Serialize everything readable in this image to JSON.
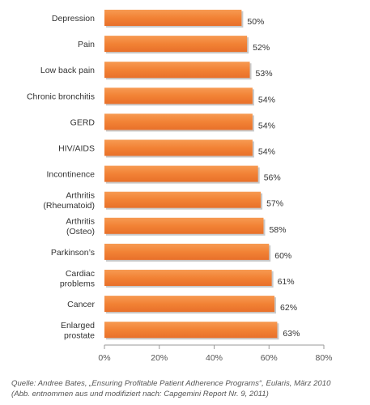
{
  "chart_data": {
    "type": "bar",
    "orientation": "horizontal",
    "categories": [
      "Depression",
      "Pain",
      "Low back pain",
      "Chronic bronchitis",
      "GERD",
      "HIV/AIDS",
      "Incontinence",
      "Arthritis\n(Rheumatoid)",
      "Arthritis\n(Osteo)",
      "Parkinson’s",
      "Cardiac\nproblems",
      "Cancer",
      "Enlarged\nprostate"
    ],
    "values": [
      50,
      52,
      53,
      54,
      54,
      54,
      56,
      57,
      58,
      60,
      61,
      62,
      63
    ],
    "value_labels": [
      "50%",
      "52%",
      "53%",
      "54%",
      "54%",
      "54%",
      "56%",
      "57%",
      "58%",
      "60%",
      "61%",
      "62%",
      "63%"
    ],
    "xlim": [
      0,
      80
    ],
    "x_ticks": [
      0,
      20,
      40,
      60,
      80
    ],
    "x_tick_labels": [
      "0%",
      "20%",
      "40%",
      "60%",
      "80%"
    ],
    "grid": false,
    "legend": "none",
    "bar_color": "#F28235",
    "bar_shadow_color": "#C9C9C9"
  },
  "source": {
    "line1": "Quelle: Andree Bates, „Ensuring Profitable Patient Adherence Programs“, Eularis, März 2010",
    "line2": "(Abb. entnommen aus und modifiziert nach: Capgemini Report Nr. 9, 2011)"
  }
}
